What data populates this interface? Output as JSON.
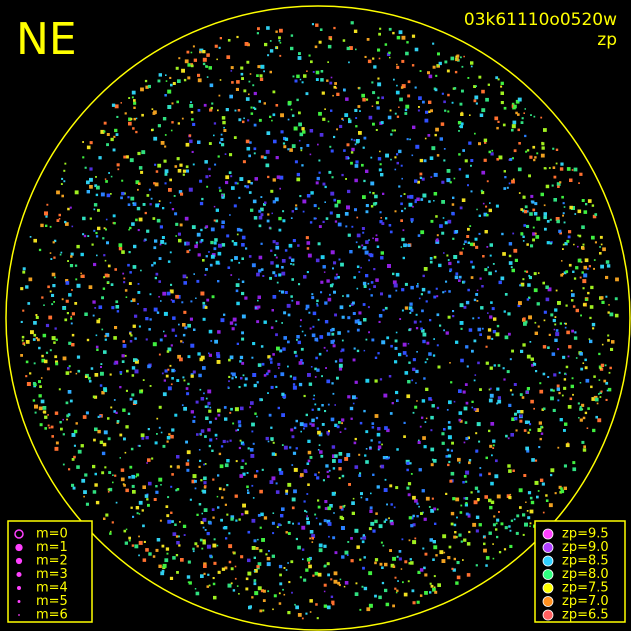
{
  "header": {
    "direction": "NE",
    "frame_id": "03k61110o0520w",
    "mode": "zp"
  },
  "legend_magnitude": {
    "items": [
      "m=0",
      "m=1",
      "m=2",
      "m=3",
      "m=4",
      "m=5",
      "m=6"
    ]
  },
  "legend_zp": {
    "items": [
      "zp=9.5",
      "zp=9.0",
      "zp=8.5",
      "zp=8.0",
      "zp=7.5",
      "zp=7.0",
      "zp=6.5"
    ]
  }
}
